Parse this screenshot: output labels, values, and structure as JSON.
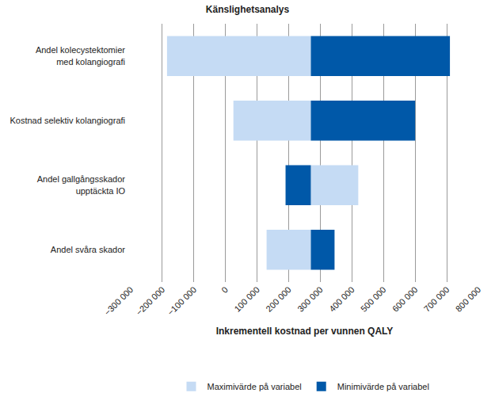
{
  "chart_data": {
    "type": "tornado",
    "title": "Känslighetsanalys",
    "x_label": "Inkrementell kostnad per vunnen QALY",
    "orientation": "horizontal",
    "categories": [
      "Andel kolecystektomier\nmed kolangiografi",
      "Kostnad selektiv kolangiografi",
      "Andel gallgångsskador\nupptäckta IO",
      "Andel svåra skador"
    ],
    "base": 270000,
    "series": [
      {
        "name": "Maximivärde på variabel",
        "color": "#c5dbf4",
        "values": [
          -185000,
          25000,
          420000,
          130000
        ]
      },
      {
        "name": "Minimivärde på variabel",
        "color": "#0058a8",
        "values": [
          710000,
          600000,
          190000,
          345000
        ]
      }
    ],
    "xlim": [
      -300000,
      800000
    ],
    "xticks": [
      {
        "value": -300000,
        "label": "−300 000"
      },
      {
        "value": -200000,
        "label": "−200 000"
      },
      {
        "value": -100000,
        "label": "−100 000"
      },
      0,
      {
        "value": 100000,
        "label": "100 000"
      },
      {
        "value": 200000,
        "label": "200 000"
      },
      {
        "value": 300000,
        "label": "300 000"
      },
      {
        "value": 400000,
        "label": "400 000"
      },
      {
        "value": 500000,
        "label": "500 000"
      },
      {
        "value": 600000,
        "label": "600 000"
      },
      {
        "value": 700000,
        "label": "700 000"
      },
      {
        "value": 800000,
        "label": "800 000"
      }
    ],
    "grid": true,
    "legend": "bottom"
  }
}
